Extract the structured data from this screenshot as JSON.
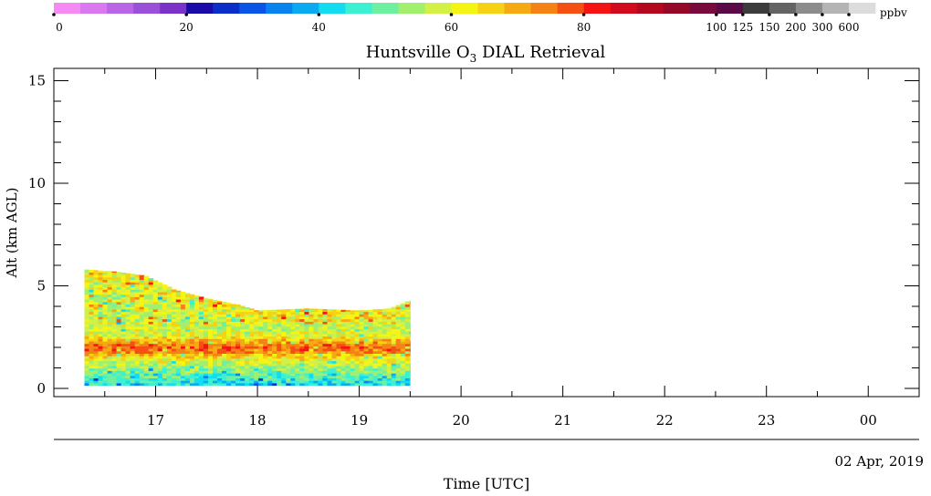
{
  "chart_data": {
    "type": "heatmap",
    "title": "Huntsville O3 DIAL Retrieval",
    "title_parts": {
      "prefix": "Huntsville O",
      "subscript": "3",
      "suffix": " DIAL Retrieval"
    },
    "xlabel": "Time [UTC]",
    "ylabel": "Alt (km AGL)",
    "date_label": "02 Apr, 2019",
    "x_ticks": [
      "17",
      "18",
      "19",
      "20",
      "21",
      "22",
      "23",
      "00"
    ],
    "x_range_hours": [
      16.0,
      24.5
    ],
    "y_ticks": [
      "0",
      "5",
      "10",
      "15"
    ],
    "ylim": [
      -0.4,
      15.6
    ],
    "colorbar": {
      "unit": "ppbv",
      "labels": [
        "0",
        "20",
        "40",
        "60",
        "80",
        "100",
        "125",
        "150",
        "200",
        "300",
        "600"
      ],
      "colors": [
        "#f58af5",
        "#d978ef",
        "#b965e6",
        "#9a50d8",
        "#7a33c6",
        "#1a0aa8",
        "#0a2ec8",
        "#0a55e6",
        "#0a82ee",
        "#0aaaf0",
        "#14dcf0",
        "#3cf0d2",
        "#6ef0a0",
        "#a0f06e",
        "#d2f046",
        "#f5f514",
        "#f5d214",
        "#f5aa14",
        "#f58214",
        "#f55014",
        "#f51414",
        "#d20a1e",
        "#b4081e",
        "#960828",
        "#780a3c",
        "#5a0a46",
        "#3c3c3c",
        "#646464",
        "#8c8c8c",
        "#b4b4b4",
        "#dcdcdc"
      ]
    },
    "observation": {
      "start_hour": 16.3,
      "end_hour": 19.5,
      "bottom_km": 0.15,
      "top_km_profile": [
        {
          "t": 16.3,
          "z": 5.8
        },
        {
          "t": 16.6,
          "z": 5.7
        },
        {
          "t": 16.9,
          "z": 5.5
        },
        {
          "t": 17.2,
          "z": 4.8
        },
        {
          "t": 17.5,
          "z": 4.4
        },
        {
          "t": 17.8,
          "z": 4.1
        },
        {
          "t": 18.0,
          "z": 3.8
        },
        {
          "t": 18.5,
          "z": 3.9
        },
        {
          "t": 19.0,
          "z": 3.8
        },
        {
          "t": 19.3,
          "z": 3.9
        },
        {
          "t": 19.5,
          "z": 4.3
        }
      ],
      "enhanced_layer_km": 2.0
    }
  }
}
